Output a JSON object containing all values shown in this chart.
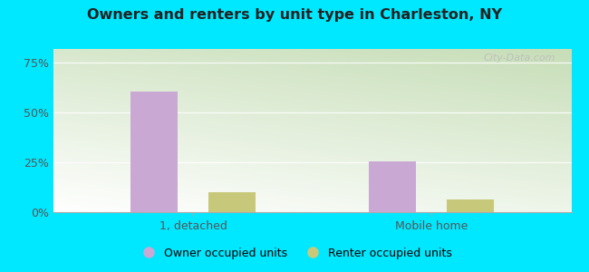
{
  "title": "Owners and renters by unit type in Charleston, NY",
  "categories": [
    "1, detached",
    "Mobile home"
  ],
  "owner_values": [
    0.605,
    0.255
  ],
  "renter_values": [
    0.1,
    0.065
  ],
  "owner_color": "#c9a8d4",
  "renter_color": "#c8c87a",
  "yticks": [
    0,
    0.25,
    0.5,
    0.75
  ],
  "ytick_labels": [
    "0%",
    "25%",
    "50%",
    "75%"
  ],
  "ylim": [
    0,
    0.82
  ],
  "bar_width": 0.09,
  "group_centers": [
    0.27,
    0.73
  ],
  "bar_gap": 0.06,
  "legend_labels": [
    "Owner occupied units",
    "Renter occupied units"
  ],
  "watermark": "City-Data.com",
  "outer_bg": "#00e8ff",
  "plot_bg_topleft": "#ffffff",
  "plot_bg_bottomright": "#c8ddb8"
}
